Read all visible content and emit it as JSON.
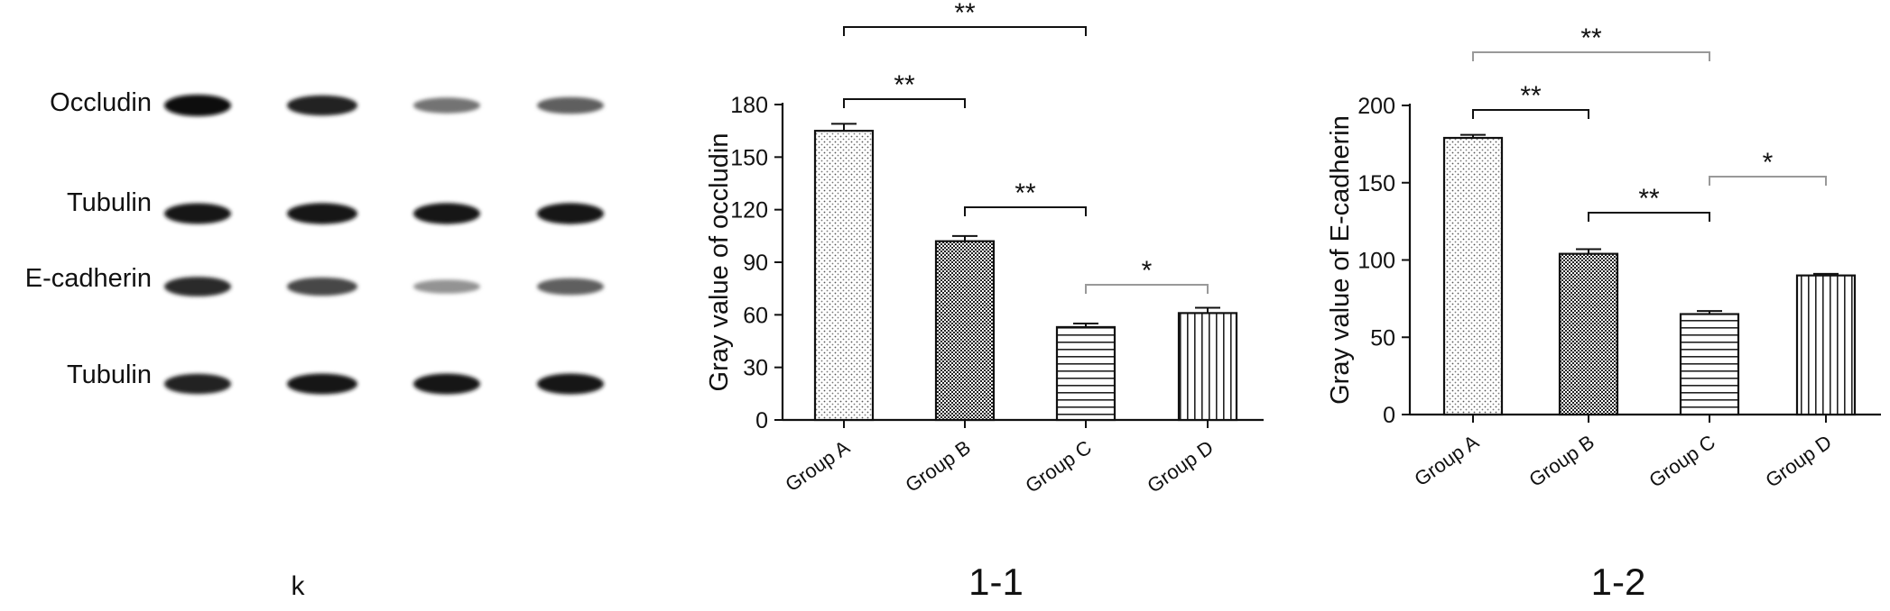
{
  "blot": {
    "labels": [
      "Occludin",
      "Tubulin",
      "E-cadherin",
      "Tubulin"
    ],
    "intensity": [
      [
        1.0,
        0.88,
        0.45,
        0.55
      ],
      [
        0.92,
        0.95,
        0.95,
        0.95
      ],
      [
        0.82,
        0.68,
        0.28,
        0.55
      ],
      [
        0.88,
        0.92,
        0.92,
        0.92
      ]
    ],
    "caption": "k"
  },
  "chart_data": [
    {
      "type": "bar",
      "panel_label": "1-1",
      "categories": [
        "Group A",
        "Group B",
        "Group C",
        "Group D"
      ],
      "values": [
        165,
        102,
        53,
        61
      ],
      "errors": [
        4,
        3,
        2,
        3
      ],
      "ylabel": "Gray value of occludin",
      "xlabel": "",
      "ylim": [
        0,
        180
      ],
      "yticks": [
        0,
        30,
        60,
        90,
        120,
        150,
        180
      ],
      "patterns": [
        "dots-light",
        "checker",
        "hlines",
        "vlines"
      ],
      "significance": [
        {
          "from": 0,
          "to": 2,
          "label": "**",
          "color": "#111111"
        },
        {
          "from": 0,
          "to": 1,
          "label": "**",
          "color": "#111111"
        },
        {
          "from": 1,
          "to": 2,
          "label": "**",
          "color": "#111111"
        },
        {
          "from": 2,
          "to": 3,
          "label": "*",
          "color": "#999999"
        }
      ]
    },
    {
      "type": "bar",
      "panel_label": "1-2",
      "categories": [
        "Group A",
        "Group B",
        "Group C",
        "Group D"
      ],
      "values": [
        179,
        104,
        65,
        90
      ],
      "errors": [
        2,
        3,
        2,
        1
      ],
      "ylabel": "Gray value of E-cadherin",
      "xlabel": "",
      "ylim": [
        0,
        200
      ],
      "yticks": [
        0,
        50,
        100,
        150,
        200
      ],
      "patterns": [
        "dots-light",
        "checker",
        "hlines",
        "vlines"
      ],
      "significance": [
        {
          "from": 0,
          "to": 2,
          "label": "**",
          "color": "#999999"
        },
        {
          "from": 0,
          "to": 1,
          "label": "**",
          "color": "#111111"
        },
        {
          "from": 1,
          "to": 2,
          "label": "**",
          "color": "#111111"
        },
        {
          "from": 2,
          "to": 3,
          "label": "*",
          "color": "#999999"
        }
      ]
    }
  ]
}
